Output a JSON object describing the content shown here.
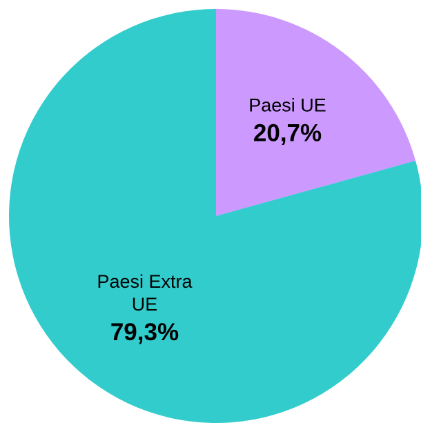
{
  "chart_data": {
    "type": "pie",
    "categories": [
      "Paesi UE",
      "Paesi Extra UE"
    ],
    "values": [
      20.7,
      79.3
    ],
    "value_labels": [
      "20,7%",
      "79,3%"
    ],
    "colors": [
      "#cc99ff",
      "#33cccc"
    ]
  }
}
